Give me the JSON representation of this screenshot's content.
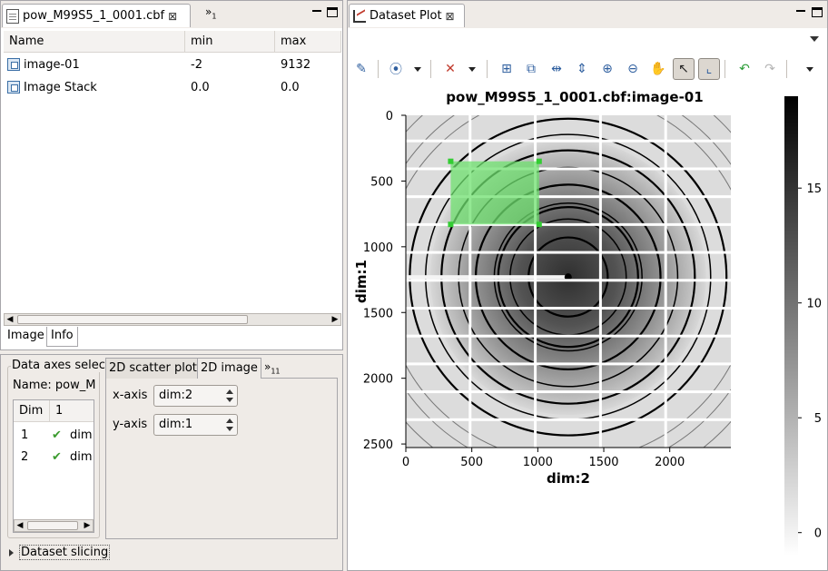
{
  "left_top": {
    "tab_title": "pow_M99S5_1_0001.cbf",
    "overflow_label": "»",
    "overflow_count": "1",
    "columns": [
      "Name",
      "min",
      "max"
    ],
    "rows": [
      {
        "name": "image-01",
        "min": "-2",
        "max": "9132"
      },
      {
        "name": "Image Stack",
        "min": "0.0",
        "max": "0.0"
      }
    ],
    "bottom_tabs": [
      "Image",
      "Info"
    ]
  },
  "left_bottom": {
    "group_title": "Data axes selec",
    "name_label": "Name: pow_M",
    "table_columns": [
      "Dim",
      "1"
    ],
    "table_rows": [
      {
        "dim": "1",
        "value": "dim:"
      },
      {
        "dim": "2",
        "value": "dim:"
      }
    ],
    "tabs": [
      "2D scatter plot",
      "2D image"
    ],
    "overflow_label": "»",
    "overflow_count": "11",
    "x_axis_label": "x-axis",
    "x_axis_value": "dim:2",
    "y_axis_label": "y-axis",
    "y_axis_value": "dim:1",
    "dataset_slicing": "Dataset slicing"
  },
  "right": {
    "tab_title": "Dataset Plot",
    "colors": {
      "roi": "#6fe06f",
      "roi_handle": "#33cc33",
      "grid": "#ffffff"
    }
  },
  "chart_data": {
    "type": "heatmap",
    "title": "pow_M99S5_1_0001.cbf:image-01",
    "xlabel": "dim:2",
    "ylabel": "dim:1",
    "xlim": [
      0,
      2463
    ],
    "ylim": [
      2527,
      0
    ],
    "x_ticks": [
      0,
      500,
      1000,
      1500,
      2000
    ],
    "y_ticks": [
      0,
      500,
      1000,
      1500,
      2000,
      2500
    ],
    "colorbar_ticks": [
      0,
      5,
      10,
      15
    ],
    "colorbar_range": [
      -1,
      19
    ],
    "beam_center": [
      1230,
      1230
    ],
    "rings": [
      300,
      440,
      530,
      560,
      700,
      830,
      960,
      1080,
      1200
    ],
    "roi": {
      "x0": 340,
      "y0": 350,
      "x1": 1010,
      "y1": 830
    }
  }
}
